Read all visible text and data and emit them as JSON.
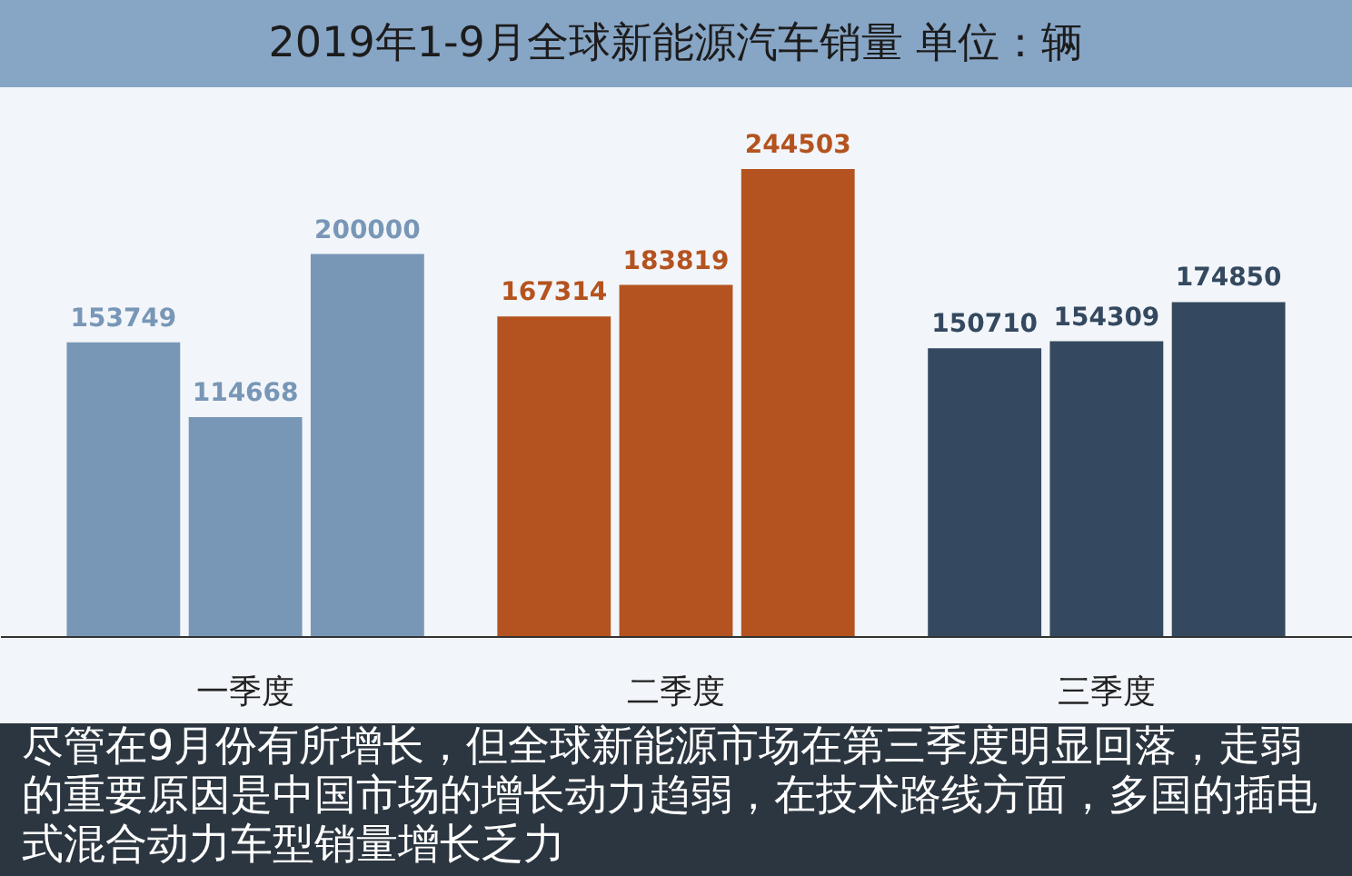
{
  "chart_data": {
    "type": "bar",
    "title": "2019年1-9月全球新能源汽车销量 单位：辆",
    "categories": [
      "一季度",
      "二季度",
      "三季度"
    ],
    "series": [
      {
        "colors": [
          "#7897b7",
          "#b4531f",
          "#34495f"
        ],
        "values": [
          153749,
          167314,
          150710
        ]
      },
      {
        "colors": [
          "#7897b7",
          "#b4531f",
          "#34495f"
        ],
        "values": [
          114668,
          183819,
          154309
        ]
      },
      {
        "colors": [
          "#7897b7",
          "#b4531f",
          "#34495f"
        ],
        "values": [
          200000,
          244503,
          174850
        ]
      }
    ],
    "data_labels": true,
    "annotations": [
      "尽管在9月份有所增长，但全球新能源市场在第三季度明显回落，走弱的重要原因是中国市场的增长动力趋弱，在技术路线方面，多国的插电式混合动力车型销量增长乏力"
    ]
  }
}
